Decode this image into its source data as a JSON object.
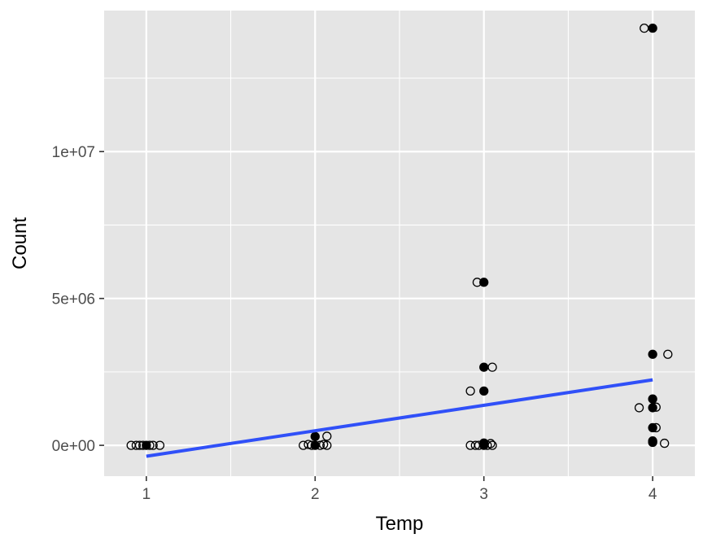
{
  "chart_data": {
    "type": "scatter",
    "title": "",
    "xlabel": "Temp",
    "ylabel": "Count",
    "x_ticks": [
      1,
      2,
      3,
      4
    ],
    "x_tick_labels": [
      "1",
      "2",
      "3",
      "4"
    ],
    "y_ticks": [
      0,
      5000000,
      10000000
    ],
    "y_tick_labels": [
      "0e+00",
      "5e+06",
      "1e+07"
    ],
    "xlim": [
      0.75,
      4.25
    ],
    "ylim": [
      -1050000,
      14800000
    ],
    "grid": true,
    "legend": "none",
    "colors": {
      "panel": "#e5e5e5",
      "grid": "#ffffff",
      "line": "#3050f8",
      "point": "#000000"
    },
    "series": [
      {
        "marker": "open-circle",
        "points": [
          {
            "x": 0.91,
            "y": 0
          },
          {
            "x": 0.94,
            "y": 0
          },
          {
            "x": 0.96,
            "y": 0
          },
          {
            "x": 0.98,
            "y": 0
          },
          {
            "x": 1.02,
            "y": 0
          },
          {
            "x": 1.04,
            "y": 0
          },
          {
            "x": 1.08,
            "y": 0
          },
          {
            "x": 1.93,
            "y": 0
          },
          {
            "x": 1.96,
            "y": 30000
          },
          {
            "x": 1.98,
            "y": 0
          },
          {
            "x": 2.03,
            "y": 0
          },
          {
            "x": 2.05,
            "y": 30000
          },
          {
            "x": 2.07,
            "y": 0
          },
          {
            "x": 2.07,
            "y": 310000
          },
          {
            "x": 2.92,
            "y": 0
          },
          {
            "x": 2.95,
            "y": 0
          },
          {
            "x": 2.97,
            "y": 0
          },
          {
            "x": 3.02,
            "y": 0
          },
          {
            "x": 3.04,
            "y": 60000
          },
          {
            "x": 3.05,
            "y": 0
          },
          {
            "x": 2.92,
            "y": 1850000
          },
          {
            "x": 3.05,
            "y": 2660000
          },
          {
            "x": 2.96,
            "y": 5550000
          },
          {
            "x": 3.92,
            "y": 1280000
          },
          {
            "x": 4.02,
            "y": 1300000
          },
          {
            "x": 4.02,
            "y": 600000
          },
          {
            "x": 4.07,
            "y": 70000
          },
          {
            "x": 4.09,
            "y": 3100000
          },
          {
            "x": 3.95,
            "y": 14200000
          }
        ]
      },
      {
        "marker": "filled-circle",
        "points": [
          {
            "x": 1.0,
            "y": 0
          },
          {
            "x": 2.0,
            "y": 0
          },
          {
            "x": 2.0,
            "y": 300000
          },
          {
            "x": 3.0,
            "y": 0
          },
          {
            "x": 3.0,
            "y": 80000
          },
          {
            "x": 3.0,
            "y": 1850000
          },
          {
            "x": 3.0,
            "y": 2660000
          },
          {
            "x": 3.0,
            "y": 5550000
          },
          {
            "x": 4.0,
            "y": 100000
          },
          {
            "x": 4.0,
            "y": 150000
          },
          {
            "x": 4.0,
            "y": 600000
          },
          {
            "x": 4.0,
            "y": 1280000
          },
          {
            "x": 4.0,
            "y": 1580000
          },
          {
            "x": 4.0,
            "y": 3100000
          },
          {
            "x": 4.0,
            "y": 14200000
          }
        ]
      }
    ],
    "fit_line": {
      "method": "linear",
      "x": [
        1,
        4
      ],
      "y": [
        -370000,
        2230000
      ]
    }
  }
}
